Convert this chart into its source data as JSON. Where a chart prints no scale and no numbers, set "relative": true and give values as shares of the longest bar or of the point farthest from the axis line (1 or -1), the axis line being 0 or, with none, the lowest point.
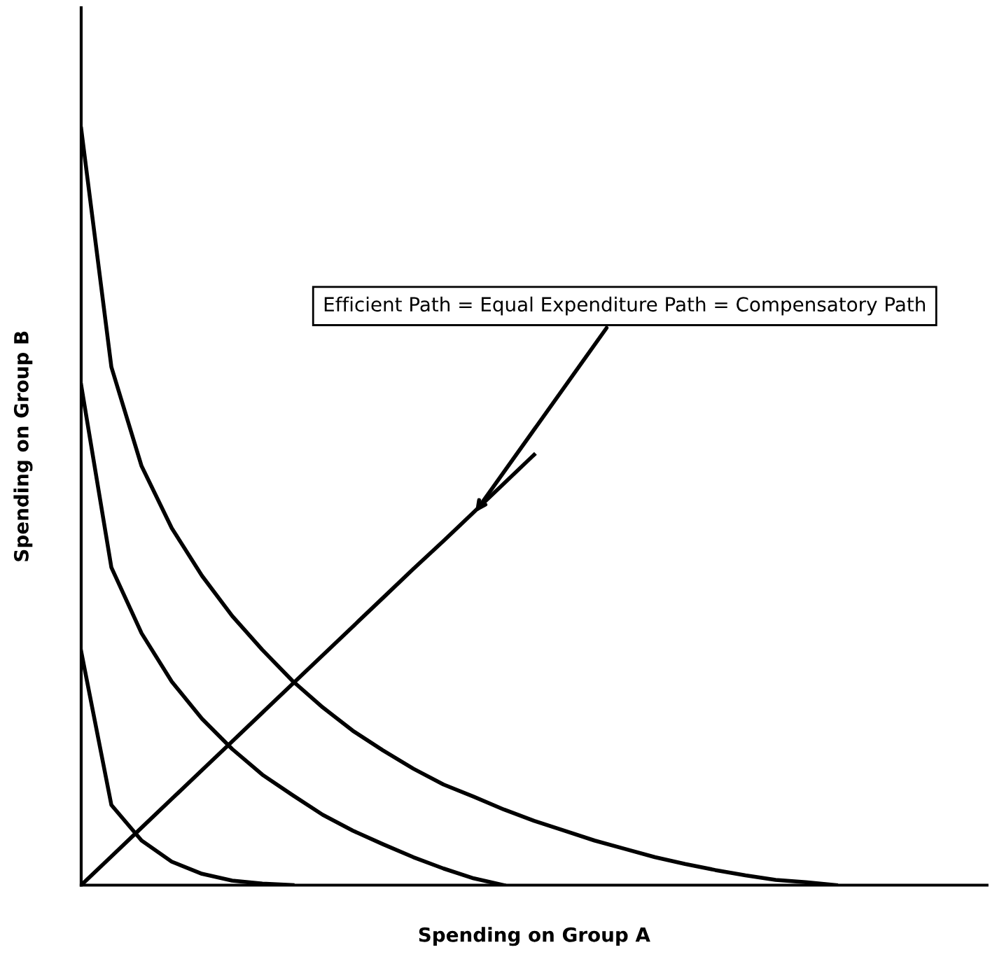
{
  "chart_data": {
    "type": "line",
    "relative": true,
    "xlabel": "Spending on Group A",
    "ylabel": "Spending on Group B",
    "categories": [
      null,
      null,
      null,
      null,
      null,
      null,
      null,
      null,
      null,
      null,
      null,
      null,
      null,
      null,
      null,
      null,
      null,
      null,
      null,
      null,
      null,
      null,
      null,
      null,
      null,
      null,
      null,
      null,
      null,
      null,
      null
    ],
    "series": [
      {
        "color": "#000000",
        "values": [
          1.0,
          0.685,
          0.554,
          0.472,
          0.409,
          0.356,
          0.311,
          0.27,
          0.235,
          0.204,
          0.178,
          0.154,
          0.133,
          0.117,
          0.1,
          0.085,
          0.072,
          0.059,
          0.048,
          0.037,
          0.028,
          0.02,
          0.013,
          0.007,
          0.004,
          0,
          null,
          null,
          null,
          null,
          null
        ]
      },
      {
        "color": "#000000",
        "values": [
          0.661,
          0.42,
          0.333,
          0.269,
          0.22,
          0.18,
          0.146,
          0.119,
          0.093,
          0.072,
          0.054,
          0.037,
          0.022,
          0.009,
          0,
          null,
          null,
          null,
          null,
          null,
          null,
          null,
          null,
          null,
          null,
          null,
          null,
          null,
          null,
          null,
          null
        ]
      },
      {
        "color": "#000000",
        "values": [
          0.309,
          0.106,
          0.059,
          0.031,
          0.015,
          0.006,
          0.002,
          0,
          null,
          null,
          null,
          null,
          null,
          null,
          null,
          null,
          null,
          null,
          null,
          null,
          null,
          null,
          null,
          null,
          null,
          null,
          null,
          null,
          null,
          null,
          null
        ]
      },
      {
        "color": "#000000",
        "values": [
          0,
          0.038,
          0.076,
          0.114,
          0.152,
          0.19,
          0.228,
          0.266,
          0.304,
          0.342,
          0.38,
          0.418,
          0.455,
          0.493,
          0.531,
          0.569,
          null,
          null,
          null,
          null,
          null,
          null,
          null,
          null,
          null,
          null,
          null,
          null,
          null,
          null,
          null
        ]
      }
    ],
    "annotations": [
      "Efficient Path = Equal Expenditure Path = Compensatory Path"
    ]
  }
}
